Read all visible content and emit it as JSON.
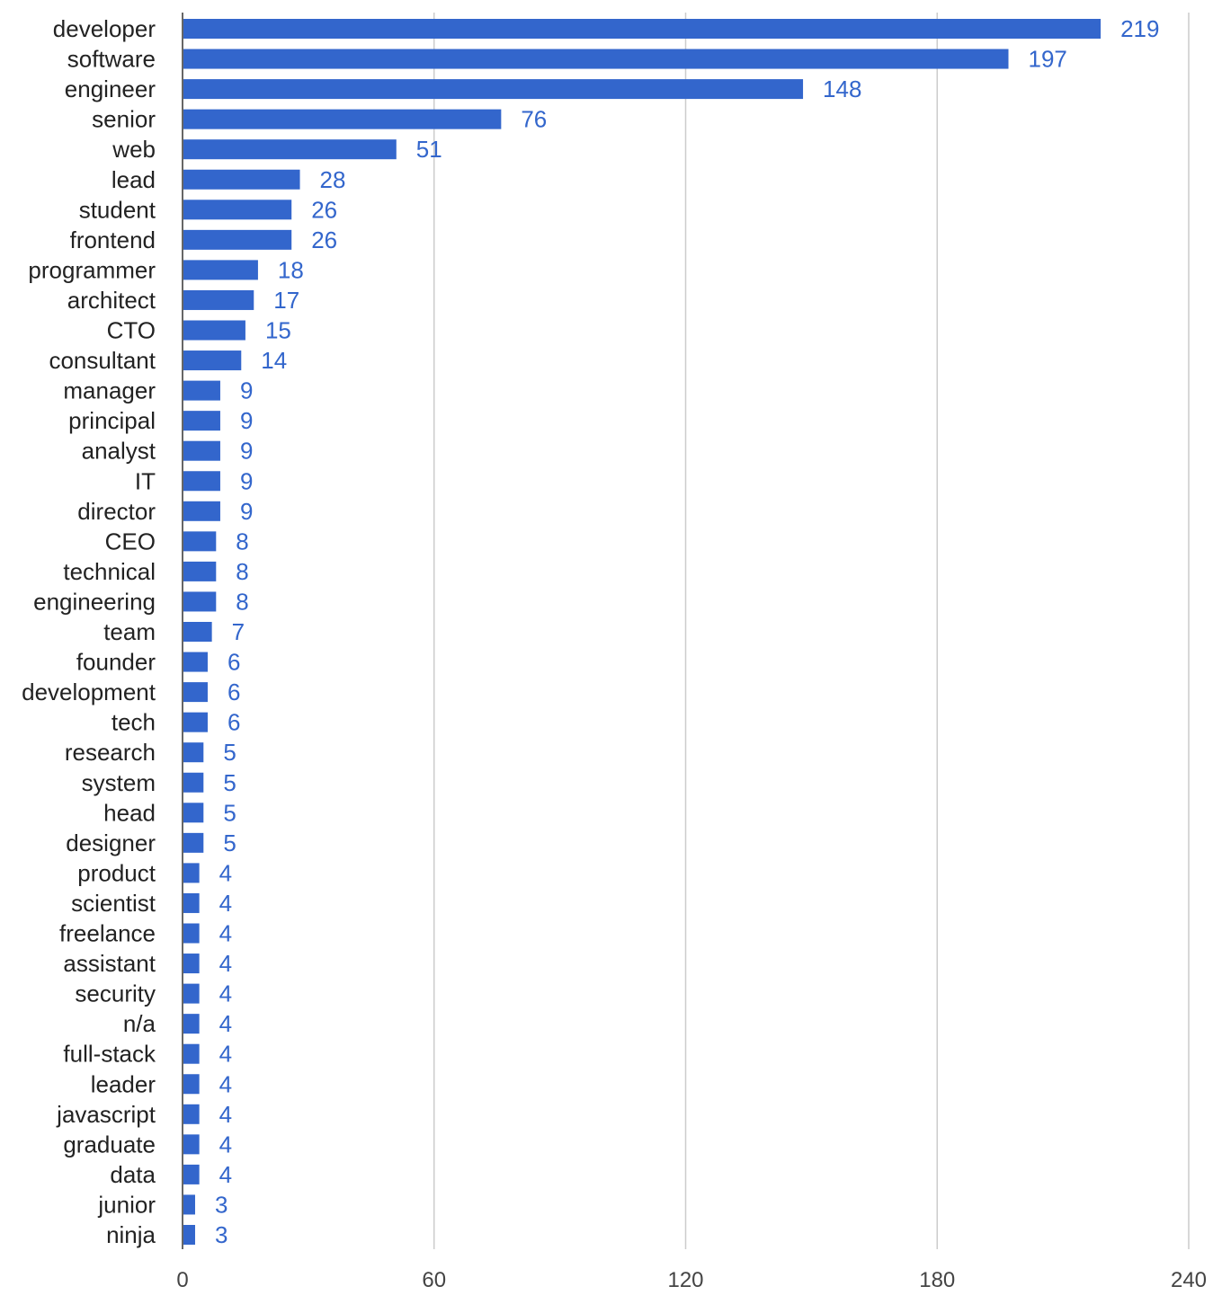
{
  "chart_data": {
    "type": "bar",
    "orientation": "horizontal",
    "title": "",
    "xlabel": "",
    "ylabel": "",
    "categories": [
      "developer",
      "software",
      "engineer",
      "senior",
      "web",
      "lead",
      "student",
      "frontend",
      "programmer",
      "architect",
      "CTO",
      "consultant",
      "manager",
      "principal",
      "analyst",
      "IT",
      "director",
      "CEO",
      "technical",
      "engineering",
      "team",
      "founder",
      "development",
      "tech",
      "research",
      "system",
      "head",
      "designer",
      "product",
      "scientist",
      "freelance",
      "assistant",
      "security",
      "n/a",
      "full-stack",
      "leader",
      "javascript",
      "graduate",
      "data",
      "junior",
      "ninja"
    ],
    "values": [
      219,
      197,
      148,
      76,
      51,
      28,
      26,
      26,
      18,
      17,
      15,
      14,
      9,
      9,
      9,
      9,
      9,
      8,
      8,
      8,
      7,
      6,
      6,
      6,
      5,
      5,
      5,
      5,
      4,
      4,
      4,
      4,
      4,
      4,
      4,
      4,
      4,
      4,
      4,
      3,
      3
    ],
    "value_labels": [
      "219",
      "197",
      "148",
      "76",
      "51",
      "28",
      "26",
      "26",
      "18",
      "17",
      "15",
      "14",
      "9",
      "9",
      "9",
      "9",
      "9",
      "8",
      "8",
      "8",
      "7",
      "6",
      "6",
      "6",
      "5",
      "5",
      "5",
      "5",
      "4",
      "4",
      "4",
      "4",
      "4",
      "4",
      "4",
      "4",
      "4",
      "4",
      "4",
      "3",
      "3"
    ],
    "xlim": [
      0,
      240
    ],
    "xticks": [
      0,
      60,
      120,
      180,
      240
    ],
    "xtick_labels": [
      "0",
      "60",
      "120",
      "180",
      "240"
    ],
    "grid": true,
    "legend": "none",
    "bar_color": "#3366cc",
    "gridline_color": "#cccccc",
    "label_color": "#222222",
    "value_label_color": "#3366cc"
  }
}
